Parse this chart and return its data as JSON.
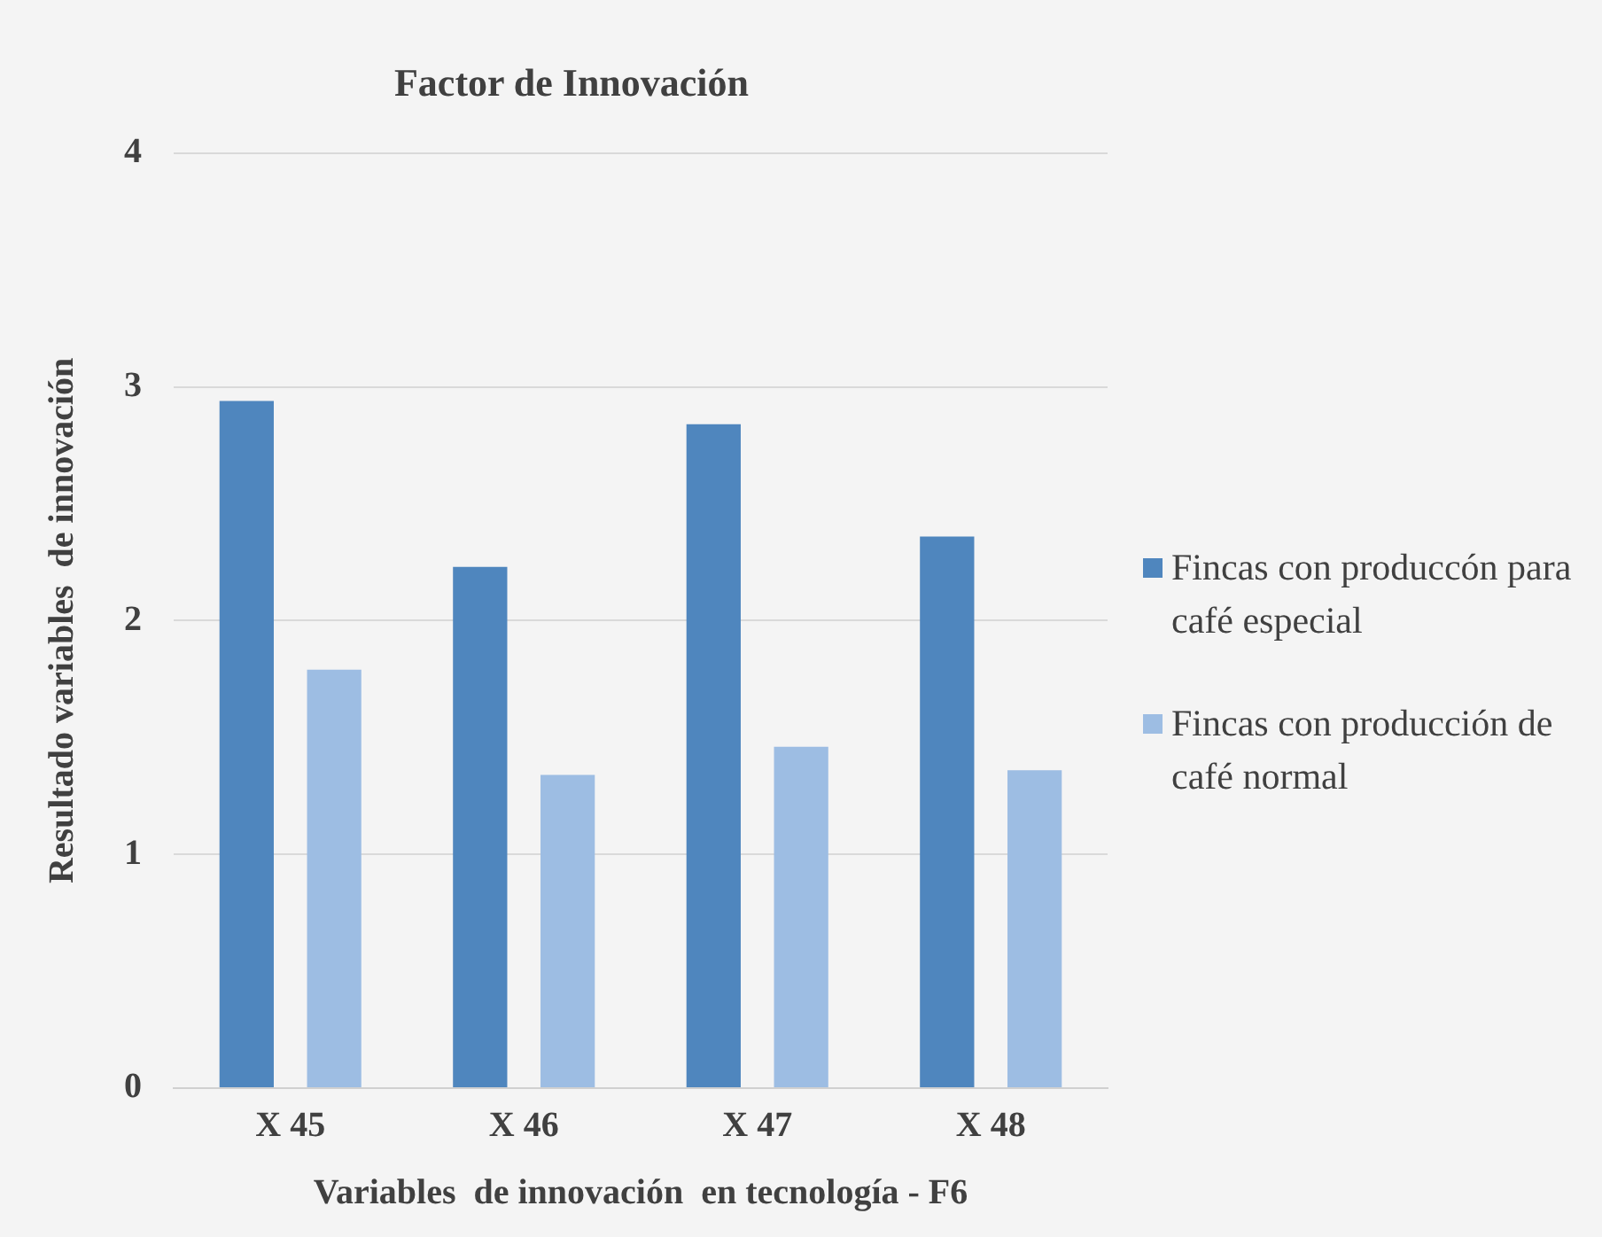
{
  "chart_data": {
    "type": "bar",
    "title": "Factor de Innovación",
    "xlabel": "Variables  de innovación  en tecnología - F6",
    "ylabel": "Resultado variables  de innovación",
    "categories": [
      "X 45",
      "X 46",
      "X 47",
      "X 48"
    ],
    "series": [
      {
        "name": "Fincas con produccón para café especial",
        "color": "#4f86be",
        "values": [
          2.94,
          2.23,
          2.84,
          2.36
        ]
      },
      {
        "name": "Fincas con producción de café normal",
        "color": "#9dbde3",
        "values": [
          1.79,
          1.34,
          1.46,
          1.36
        ]
      }
    ],
    "ylim": [
      0,
      4
    ],
    "yticks": [
      0,
      1,
      2,
      3,
      4
    ],
    "grid": "y",
    "legend": "right"
  }
}
